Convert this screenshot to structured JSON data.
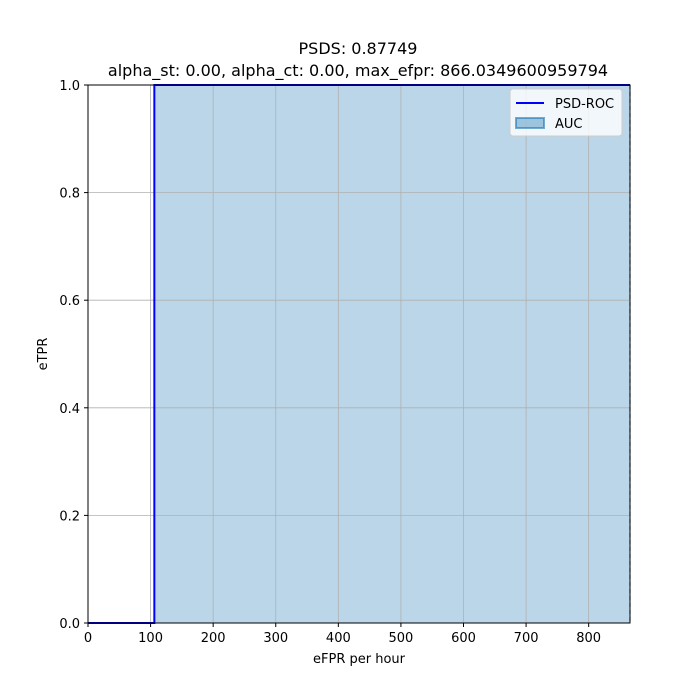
{
  "chart_data": {
    "type": "line",
    "title": "PSDS: 0.87749",
    "subtitle": "alpha_st: 0.00, alpha_ct: 0.00, max_efpr: 866.0349600959794",
    "xlabel": "eFPR per hour",
    "ylabel": "eTPR",
    "xlim": [
      0,
      866.0349600959794
    ],
    "ylim": [
      0,
      1.0
    ],
    "x_ticks": [
      0,
      100,
      200,
      300,
      400,
      500,
      600,
      700,
      800
    ],
    "x_tick_labels": [
      "0",
      "100",
      "200",
      "300",
      "400",
      "500",
      "600",
      "700",
      "800"
    ],
    "y_ticks": [
      0.0,
      0.2,
      0.4,
      0.6,
      0.8,
      1.0
    ],
    "y_tick_labels": [
      "0.0",
      "0.2",
      "0.4",
      "0.6",
      "0.8",
      "1.0"
    ],
    "grid": true,
    "legend_position": "top-right",
    "series": [
      {
        "name": "PSD-ROC",
        "type": "step",
        "color": "#0000ff",
        "x": [
          0,
          106,
          106,
          866.0349600959794
        ],
        "y": [
          0,
          0,
          1,
          1
        ]
      },
      {
        "name": "AUC",
        "type": "area",
        "color": "#1f77b4",
        "opacity": 0.3,
        "x": [
          106,
          866.0349600959794
        ],
        "y": [
          1,
          1
        ]
      }
    ],
    "vertical_lines": [
      {
        "x": 866.0349600959794,
        "style": "dashed",
        "color": "#1f77b4"
      }
    ]
  }
}
